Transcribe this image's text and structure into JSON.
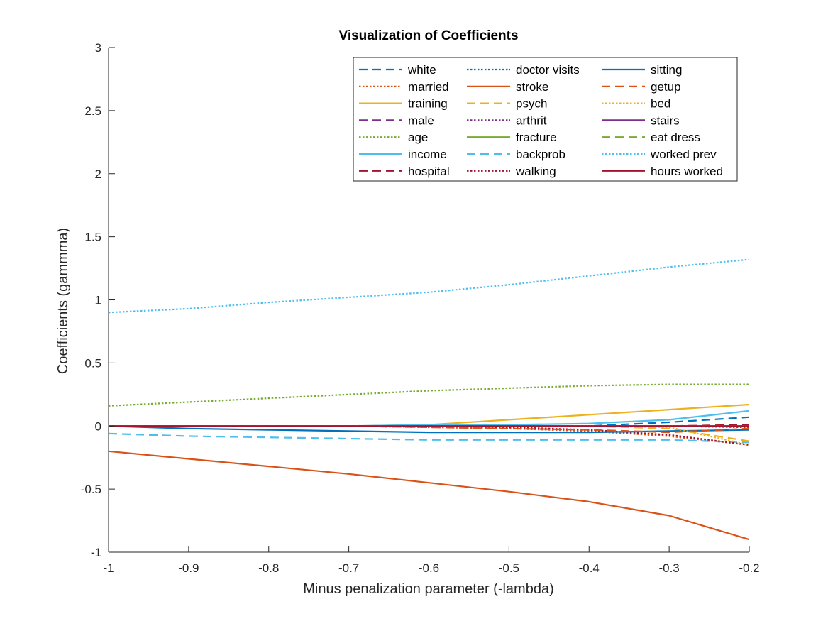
{
  "chart_data": {
    "type": "line",
    "title": "Visualization of Coefficients",
    "xlabel": "Minus penalization parameter (-lambda)",
    "ylabel": "Coefficients (gammma)",
    "xlim": [
      -1,
      -0.2
    ],
    "ylim": [
      -1,
      3
    ],
    "xticks": [
      -1,
      -0.9,
      -0.8,
      -0.7,
      -0.6,
      -0.5,
      -0.4,
      -0.3,
      -0.2
    ],
    "xtick_labels": [
      "-1",
      "-0.9",
      "-0.8",
      "-0.7",
      "-0.6",
      "-0.5",
      "-0.4",
      "-0.3",
      "-0.2"
    ],
    "yticks": [
      -1,
      -0.5,
      0,
      0.5,
      1,
      1.5,
      2,
      2.5,
      3
    ],
    "ytick_labels": [
      "-1",
      "-0.5",
      "0",
      "0.5",
      "1",
      "1.5",
      "2",
      "2.5",
      "3"
    ],
    "grid": false,
    "legend_position": "top-right",
    "legend_columns": 3,
    "x": [
      -1,
      -0.9,
      -0.8,
      -0.7,
      -0.6,
      -0.5,
      -0.4,
      -0.3,
      -0.2
    ],
    "series": [
      {
        "name": "white",
        "color": "#0072BD",
        "style": "dashed",
        "values": [
          0,
          0,
          0,
          0,
          0,
          0,
          0,
          0.03,
          0.07
        ]
      },
      {
        "name": "married",
        "color": "#D95319",
        "style": "dotted",
        "values": [
          0,
          0,
          0,
          0,
          -0.01,
          -0.02,
          -0.04,
          -0.08,
          -0.15
        ]
      },
      {
        "name": "training",
        "color": "#EDB120",
        "style": "solid",
        "values": [
          0,
          0,
          0,
          0,
          0.01,
          0.05,
          0.09,
          0.13,
          0.17
        ]
      },
      {
        "name": "male",
        "color": "#7E2F8E",
        "style": "dashed",
        "values": [
          0,
          0,
          0,
          0,
          0,
          0,
          0,
          0,
          0
        ]
      },
      {
        "name": "age",
        "color": "#77AC30",
        "style": "dotted",
        "values": [
          0.16,
          0.19,
          0.22,
          0.25,
          0.28,
          0.3,
          0.32,
          0.33,
          0.33
        ]
      },
      {
        "name": "income",
        "color": "#4DBEEE",
        "style": "solid",
        "values": [
          0,
          0,
          0,
          0,
          0.01,
          0.01,
          0.02,
          0.05,
          0.12
        ]
      },
      {
        "name": "hospital",
        "color": "#A2142F",
        "style": "dashed",
        "values": [
          0,
          0,
          0,
          0,
          0,
          0,
          0,
          0,
          0.01
        ]
      },
      {
        "name": "doctor visits",
        "color": "#0072BD",
        "style": "dotted",
        "values": [
          0,
          0,
          0,
          0,
          0,
          0,
          0,
          0,
          -0.01
        ]
      },
      {
        "name": "stroke",
        "color": "#D95319",
        "style": "solid",
        "values": [
          -0.2,
          -0.26,
          -0.32,
          -0.38,
          -0.45,
          -0.52,
          -0.6,
          -0.71,
          -0.9
        ]
      },
      {
        "name": "psych",
        "color": "#EDB120",
        "style": "dashed",
        "values": [
          0,
          0,
          0,
          0,
          0,
          0,
          0,
          -0.02,
          -0.12
        ]
      },
      {
        "name": "arthrit",
        "color": "#7E2F8E",
        "style": "dotted",
        "values": [
          0,
          0,
          0,
          0,
          0,
          0,
          0,
          0,
          -0.01
        ]
      },
      {
        "name": "fracture",
        "color": "#77AC30",
        "style": "solid",
        "values": [
          0,
          0,
          0,
          0,
          0,
          0,
          0,
          0,
          0
        ]
      },
      {
        "name": "backprob",
        "color": "#4DBEEE",
        "style": "dashed",
        "values": [
          -0.06,
          -0.08,
          -0.09,
          -0.1,
          -0.11,
          -0.11,
          -0.11,
          -0.11,
          -0.13
        ]
      },
      {
        "name": "walking",
        "color": "#A2142F",
        "style": "dotted",
        "values": [
          0,
          0,
          0,
          0,
          0,
          -0.01,
          -0.03,
          -0.07,
          -0.15
        ]
      },
      {
        "name": "sitting",
        "color": "#0072BD",
        "style": "solid",
        "values": [
          0,
          -0.02,
          -0.03,
          -0.04,
          -0.05,
          -0.05,
          -0.05,
          -0.04,
          -0.03
        ]
      },
      {
        "name": "getup",
        "color": "#D95319",
        "style": "dashed",
        "values": [
          0,
          0,
          0,
          0,
          -0.01,
          -0.02,
          -0.03,
          -0.05,
          -0.02
        ]
      },
      {
        "name": "bed",
        "color": "#EDB120",
        "style": "dotted",
        "values": [
          0,
          0,
          0,
          0,
          0,
          0,
          0,
          -0.01,
          -0.15
        ]
      },
      {
        "name": "stairs",
        "color": "#7E2F8E",
        "style": "solid",
        "values": [
          0,
          0,
          0,
          0,
          0,
          0,
          0,
          0,
          0
        ]
      },
      {
        "name": "eat dress",
        "color": "#77AC30",
        "style": "dashed",
        "values": [
          0,
          0,
          0,
          0,
          0,
          0,
          0,
          0,
          0
        ]
      },
      {
        "name": "worked prev",
        "color": "#4DBEEE",
        "style": "dotted",
        "values": [
          0.9,
          0.93,
          0.98,
          1.02,
          1.06,
          1.12,
          1.19,
          1.26,
          1.32
        ]
      },
      {
        "name": "hours worked",
        "color": "#A2142F",
        "style": "solid",
        "values": [
          0,
          0,
          0,
          0,
          0,
          0,
          0,
          0,
          0
        ]
      }
    ]
  }
}
